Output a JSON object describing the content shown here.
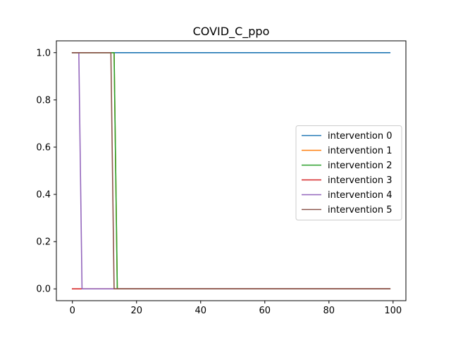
{
  "chart_data": {
    "type": "line",
    "title": "COVID_C_ppo",
    "xlabel": "",
    "ylabel": "",
    "xlim": [
      -5,
      104
    ],
    "ylim": [
      -0.05,
      1.05
    ],
    "xticks": [
      0,
      20,
      40,
      60,
      80,
      100
    ],
    "yticks": [
      0.0,
      0.2,
      0.4,
      0.6,
      0.8,
      1.0
    ],
    "xtick_labels": [
      "0",
      "20",
      "40",
      "60",
      "80",
      "100"
    ],
    "ytick_labels": [
      "0.0",
      "0.2",
      "0.4",
      "0.6",
      "0.8",
      "1.0"
    ],
    "grid": false,
    "legend_position": "center-right",
    "series": [
      {
        "name": "intervention 0",
        "color": "#1f77b4",
        "points": [
          [
            0,
            1
          ],
          [
            99,
            1
          ]
        ]
      },
      {
        "name": "intervention 1",
        "color": "#ff7f0e",
        "points": [
          [
            0,
            1
          ],
          [
            13,
            1
          ],
          [
            14,
            0
          ],
          [
            99,
            0
          ]
        ]
      },
      {
        "name": "intervention 2",
        "color": "#2ca02c",
        "points": [
          [
            0,
            1
          ],
          [
            13,
            1
          ],
          [
            14,
            0
          ],
          [
            99,
            0
          ]
        ]
      },
      {
        "name": "intervention 3",
        "color": "#d62728",
        "points": [
          [
            0,
            0
          ],
          [
            99,
            0
          ]
        ]
      },
      {
        "name": "intervention 4",
        "color": "#9467bd",
        "points": [
          [
            0,
            1
          ],
          [
            2,
            1
          ],
          [
            3,
            0
          ],
          [
            99,
            0
          ]
        ]
      },
      {
        "name": "intervention 5",
        "color": "#8c564b",
        "points": [
          [
            0,
            1
          ],
          [
            12,
            1
          ],
          [
            13,
            0
          ],
          [
            99,
            0
          ]
        ]
      }
    ]
  }
}
